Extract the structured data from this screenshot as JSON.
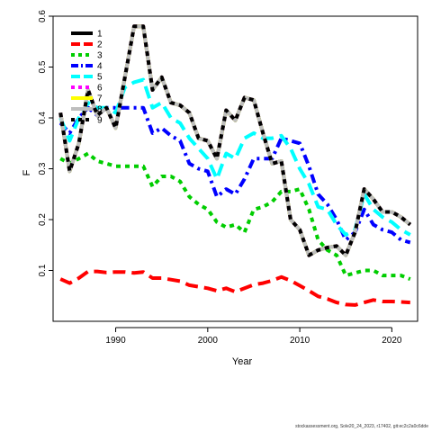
{
  "chart_data": {
    "type": "line",
    "xlabel": "Year",
    "ylabel": "F",
    "xlim": [
      1983.2,
      2022.8
    ],
    "ylim": [
      0.0,
      0.6
    ],
    "xticks": [
      1990,
      2000,
      2010,
      2020
    ],
    "yticks": [
      0.1,
      0.2,
      0.3,
      0.4,
      0.5,
      0.6
    ],
    "legend_position": "top-left",
    "grid": false,
    "x": [
      1984,
      1985,
      1986,
      1987,
      1988,
      1989,
      1990,
      1991,
      1992,
      1993,
      1994,
      1995,
      1996,
      1997,
      1998,
      1999,
      2000,
      2001,
      2002,
      2003,
      2004,
      2005,
      2006,
      2007,
      2008,
      2009,
      2010,
      2011,
      2012,
      2013,
      2014,
      2015,
      2016,
      2017,
      2018,
      2019,
      2020,
      2021,
      2022
    ],
    "series": [
      {
        "name": "1",
        "color": "#000000",
        "dash": "solid",
        "values": [
          0.41,
          0.295,
          0.35,
          0.455,
          0.405,
          0.42,
          0.38,
          0.48,
          0.58,
          0.58,
          0.455,
          0.48,
          0.43,
          0.425,
          0.41,
          0.36,
          0.355,
          0.32,
          0.415,
          0.395,
          0.44,
          0.435,
          0.37,
          0.31,
          0.315,
          0.2,
          0.18,
          0.13,
          0.14,
          0.145,
          0.148,
          0.13,
          0.175,
          0.26,
          0.24,
          0.215,
          0.215,
          0.205,
          0.19
        ]
      },
      {
        "name": "2",
        "color": "#ff0000",
        "dash": "long",
        "values": [
          0.083,
          0.075,
          0.085,
          0.098,
          0.098,
          0.096,
          0.097,
          0.097,
          0.095,
          0.097,
          0.085,
          0.085,
          0.082,
          0.079,
          0.071,
          0.068,
          0.065,
          0.06,
          0.065,
          0.058,
          0.065,
          0.072,
          0.075,
          0.08,
          0.087,
          0.08,
          0.07,
          0.06,
          0.049,
          0.044,
          0.037,
          0.033,
          0.032,
          0.037,
          0.042,
          0.039,
          0.039,
          0.038,
          0.037
        ]
      },
      {
        "name": "3",
        "color": "#00cd00",
        "dash": "short",
        "values": [
          0.32,
          0.31,
          0.32,
          0.33,
          0.315,
          0.31,
          0.305,
          0.305,
          0.305,
          0.305,
          0.265,
          0.285,
          0.285,
          0.275,
          0.245,
          0.23,
          0.22,
          0.195,
          0.185,
          0.19,
          0.175,
          0.22,
          0.225,
          0.235,
          0.255,
          0.255,
          0.26,
          0.22,
          0.16,
          0.14,
          0.13,
          0.09,
          0.095,
          0.1,
          0.1,
          0.09,
          0.09,
          0.09,
          0.083
        ]
      },
      {
        "name": "4",
        "color": "#0000ff",
        "dash": "dotdash",
        "values": [
          0.39,
          0.37,
          0.4,
          0.42,
          0.405,
          0.42,
          0.42,
          0.42,
          0.42,
          0.42,
          0.37,
          0.38,
          0.365,
          0.355,
          0.31,
          0.3,
          0.295,
          0.245,
          0.26,
          0.25,
          0.28,
          0.32,
          0.32,
          0.32,
          0.36,
          0.355,
          0.35,
          0.305,
          0.25,
          0.23,
          0.2,
          0.16,
          0.175,
          0.22,
          0.19,
          0.18,
          0.175,
          0.16,
          0.155
        ]
      },
      {
        "name": "5",
        "color": "#00ffff",
        "dash": "long",
        "values": [
          0.4,
          0.355,
          0.4,
          0.43,
          0.42,
          0.42,
          0.41,
          0.46,
          0.47,
          0.475,
          0.42,
          0.43,
          0.4,
          0.39,
          0.36,
          0.34,
          0.32,
          0.28,
          0.33,
          0.32,
          0.36,
          0.37,
          0.36,
          0.36,
          0.365,
          0.34,
          0.3,
          0.27,
          0.225,
          0.22,
          0.19,
          0.17,
          0.18,
          0.25,
          0.22,
          0.205,
          0.195,
          0.18,
          0.17
        ]
      },
      {
        "name": "6",
        "color": "#ff00ff",
        "dash": "short",
        "values": [
          0.41,
          0.295,
          0.35,
          0.455,
          0.405,
          0.42,
          0.38,
          0.48,
          0.58,
          0.58,
          0.455,
          0.48,
          0.43,
          0.425,
          0.41,
          0.36,
          0.355,
          0.32,
          0.415,
          0.395,
          0.44,
          0.435,
          0.37,
          0.31,
          0.315,
          0.2,
          0.18,
          0.13,
          0.14,
          0.145,
          0.148,
          0.13,
          0.175,
          0.26,
          0.24,
          0.215,
          0.215,
          0.205,
          0.19
        ]
      },
      {
        "name": "7",
        "color": "#ffff00",
        "dash": "solid",
        "values": [
          0.41,
          0.295,
          0.35,
          0.455,
          0.405,
          0.42,
          0.38,
          0.48,
          0.58,
          0.58,
          0.455,
          0.48,
          0.43,
          0.425,
          0.41,
          0.36,
          0.355,
          0.32,
          0.415,
          0.395,
          0.44,
          0.435,
          0.37,
          0.31,
          0.315,
          0.2,
          0.18,
          0.13,
          0.14,
          0.145,
          0.148,
          0.13,
          0.175,
          0.26,
          0.24,
          0.215,
          0.215,
          0.205,
          0.19
        ]
      },
      {
        "name": "8",
        "color": "#bebebe",
        "dash": "solid",
        "values": [
          0.41,
          0.295,
          0.35,
          0.455,
          0.405,
          0.42,
          0.38,
          0.48,
          0.58,
          0.58,
          0.455,
          0.48,
          0.43,
          0.425,
          0.41,
          0.36,
          0.355,
          0.32,
          0.415,
          0.395,
          0.44,
          0.435,
          0.37,
          0.31,
          0.315,
          0.2,
          0.18,
          0.13,
          0.14,
          0.145,
          0.148,
          0.13,
          0.175,
          0.26,
          0.24,
          0.215,
          0.215,
          0.205,
          0.19
        ]
      },
      {
        "name": "9",
        "color": "#000000",
        "dash": "short",
        "values": [
          0.41,
          0.295,
          0.35,
          0.455,
          0.405,
          0.42,
          0.38,
          0.48,
          0.58,
          0.58,
          0.455,
          0.48,
          0.43,
          0.425,
          0.41,
          0.36,
          0.355,
          0.32,
          0.415,
          0.395,
          0.44,
          0.435,
          0.37,
          0.31,
          0.315,
          0.2,
          0.18,
          0.13,
          0.14,
          0.145,
          0.148,
          0.13,
          0.175,
          0.26,
          0.24,
          0.215,
          0.215,
          0.205,
          0.19
        ]
      }
    ]
  },
  "footer": {
    "text": "stockassessment.org, Sole20_24_2023, r17402, git:ec2c2a0c6dde"
  }
}
